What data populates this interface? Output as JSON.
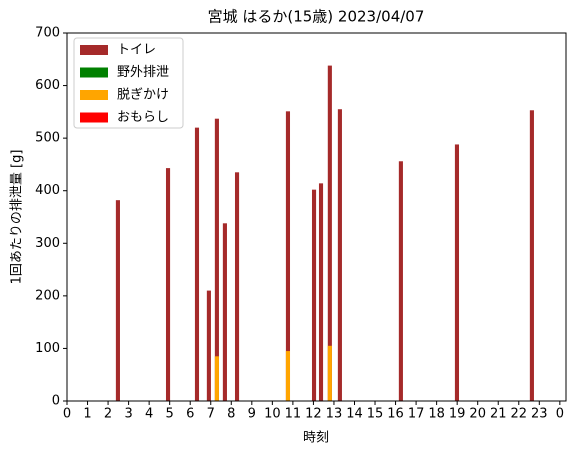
{
  "chart_data": {
    "type": "bar",
    "title": "宮城 はるか(15歳) 2023/04/07",
    "x_label": "時刻",
    "y_label": "1回あたりの排泄量 [g]",
    "x": [
      2.48,
      4.92,
      6.33,
      6.91,
      7.3,
      7.69,
      8.28,
      10.76,
      12.03,
      12.37,
      12.8,
      13.29,
      16.26,
      18.99,
      22.64
    ],
    "series": [
      {
        "name": "トイレ",
        "color": "#a52a2a",
        "values": [
          382,
          443,
          520,
          210,
          537,
          338,
          435,
          551,
          402,
          414,
          638,
          555,
          456,
          488,
          553
        ]
      },
      {
        "name": "野外排泄",
        "color": "#008000",
        "values": [
          null,
          null,
          null,
          null,
          null,
          null,
          null,
          null,
          null,
          null,
          null,
          null,
          null,
          null,
          null
        ]
      },
      {
        "name": "脱ぎかけ",
        "color": "#ffa500",
        "values": [
          null,
          null,
          null,
          null,
          85,
          null,
          null,
          95,
          null,
          null,
          105,
          null,
          null,
          null,
          null
        ]
      },
      {
        "name": "おもらし",
        "color": "#ff0000",
        "values": [
          null,
          null,
          null,
          null,
          null,
          null,
          null,
          null,
          null,
          null,
          null,
          null,
          null,
          null,
          null
        ]
      }
    ],
    "xlim": [
      0,
      24.3
    ],
    "xticks": [
      0,
      1,
      2,
      3,
      4,
      5,
      6,
      7,
      8,
      9,
      10,
      11,
      12,
      13,
      14,
      15,
      16,
      17,
      18,
      19,
      20,
      21,
      22,
      23,
      {
        "value": 24,
        "label": "0"
      }
    ],
    "ylim": [
      0,
      700
    ],
    "yticks": [
      0,
      100,
      200,
      300,
      400,
      500,
      600,
      700
    ],
    "legend": "upper left"
  }
}
